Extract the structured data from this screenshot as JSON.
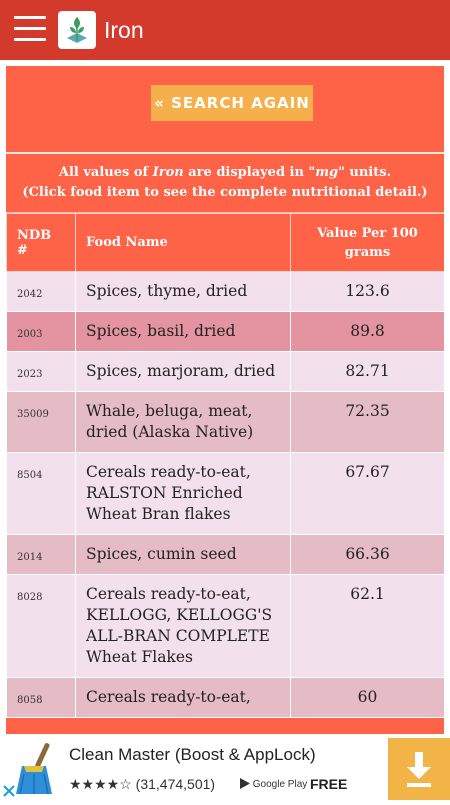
{
  "app": {
    "title": "Iron"
  },
  "search": {
    "button_label": "« SEARCH AGAIN"
  },
  "info": {
    "line1_pre": "All values of ",
    "line1_nutrient": "Iron",
    "line1_mid": " are displayed in \"",
    "line1_unit": "mg",
    "line1_post": "\" units.",
    "line2": "(Click food item to see the complete nutritional detail.)"
  },
  "table": {
    "headers": {
      "ndb": "NDB #",
      "name": "Food Name",
      "value": "Value Per 100 grams"
    },
    "rows": [
      {
        "ndb": "2042",
        "name": "Spices, thyme, dried",
        "value": "123.6"
      },
      {
        "ndb": "2003",
        "name": "Spices, basil, dried",
        "value": "89.8"
      },
      {
        "ndb": "2023",
        "name": "Spices, marjoram, dried",
        "value": "82.71"
      },
      {
        "ndb": "35009",
        "name": "Whale, beluga, meat, dried (Alaska Native)",
        "value": "72.35"
      },
      {
        "ndb": "8504",
        "name": "Cereals ready-to-eat, RALSTON Enriched Wheat Bran flakes",
        "value": "67.67"
      },
      {
        "ndb": "2014",
        "name": "Spices, cumin seed",
        "value": "66.36"
      },
      {
        "ndb": "8028",
        "name": "Cereals ready-to-eat, KELLOGG, KELLOGG'S ALL-BRAN COMPLETE Wheat Flakes",
        "value": "62.1"
      },
      {
        "ndb": "8058",
        "name": "Cereals ready-to-eat,",
        "value": "60"
      }
    ]
  },
  "ad": {
    "title": "Clean Master (Boost & AppLock)",
    "stars": "★★★★☆",
    "rating_count": "(31,474,501)",
    "store": "Google Play",
    "price": "FREE"
  },
  "colors": {
    "appbar": "#d33a2c",
    "panel": "#ff6347",
    "search_button": "#f5b04c",
    "row_light": "#f2e0ec",
    "row_dark": "#e394a0",
    "row_medium": "#e5bcc6",
    "ad_download": "#f2b446"
  }
}
